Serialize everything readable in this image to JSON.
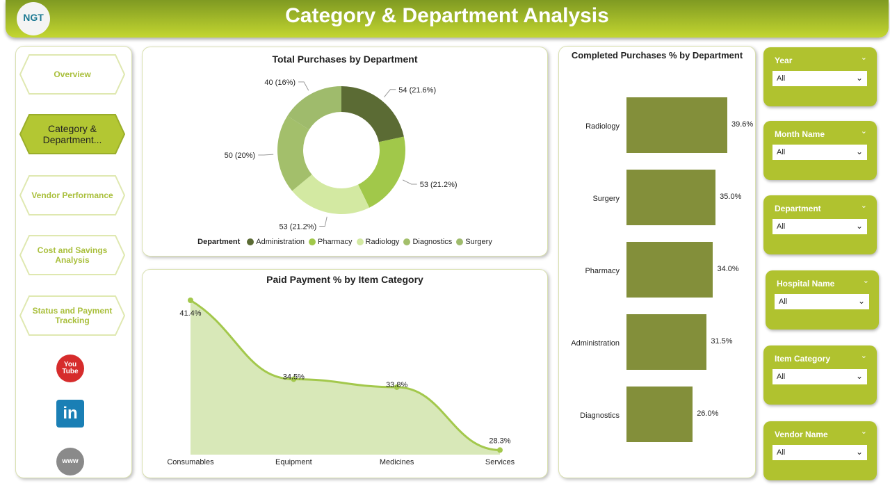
{
  "header": {
    "title": "Category & Department Analysis",
    "logo_text": "NGT"
  },
  "nav": [
    {
      "label": "Overview",
      "active": false
    },
    {
      "label": "Category & Department...",
      "active": true
    },
    {
      "label": "Vendor Performance",
      "active": false
    },
    {
      "label": "Cost and Savings Analysis",
      "active": false
    },
    {
      "label": "Status and Payment Tracking",
      "active": false
    }
  ],
  "social": [
    "youtube-icon",
    "linkedin-icon",
    "web-icon"
  ],
  "donut": {
    "title": "Total Purchases by Department",
    "legend_title": "Department",
    "slices": [
      {
        "name": "Administration",
        "value": 54,
        "label": "54 (21.6%)",
        "color": "#5b6b34"
      },
      {
        "name": "Pharmacy",
        "value": 53,
        "label": "53 (21.2%)",
        "color": "#a1c84a"
      },
      {
        "name": "Radiology",
        "value": 53,
        "label": "53 (21.2%)",
        "color": "#d3e9a2"
      },
      {
        "name": "Diagnostics",
        "value": 50,
        "label": "50 (20%)",
        "color": "#a3bf6b"
      },
      {
        "name": "Surgery",
        "value": 40,
        "label": "40 (16%)",
        "color": "#9fbb6c"
      }
    ]
  },
  "area": {
    "title": "Paid Payment % by Item Category",
    "categories": [
      "Consumables",
      "Equipment",
      "Medicines",
      "Services"
    ],
    "values": [
      41.4,
      34.5,
      33.8,
      28.3
    ],
    "labels": [
      "41.4%",
      "34.5%",
      "33.8%",
      "28.3%"
    ],
    "color": "#a3c84c"
  },
  "bars": {
    "title": "Completed Purchases % by Department",
    "categories": [
      "Radiology",
      "Surgery",
      "Pharmacy",
      "Administration",
      "Diagnostics"
    ],
    "values": [
      39.6,
      35.0,
      34.0,
      31.5,
      26.0
    ],
    "labels": [
      "39.6%",
      "35.0%",
      "34.0%",
      "31.5%",
      "26.0%"
    ],
    "color": "#838f3a"
  },
  "slicers": [
    {
      "title": "Year",
      "value": "All"
    },
    {
      "title": "Month Name",
      "value": "All"
    },
    {
      "title": "Department",
      "value": "All"
    },
    {
      "title": "Hospital Name",
      "value": "All"
    },
    {
      "title": "Item Category",
      "value": "All"
    },
    {
      "title": "Vendor Name",
      "value": "All"
    }
  ]
}
